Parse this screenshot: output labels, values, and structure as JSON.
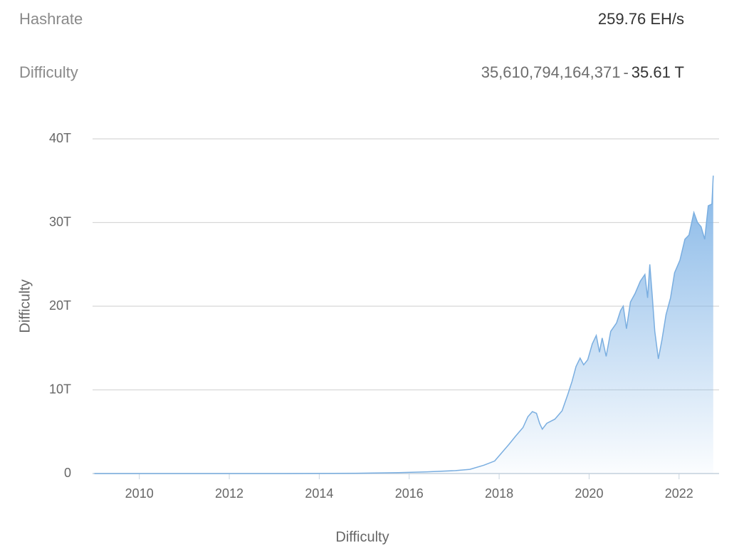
{
  "stats": [
    {
      "label": "Hashrate",
      "value": "259.76 EH/s"
    },
    {
      "label": "Difficulty",
      "value": "35,610,794,164,371",
      "separator": "-",
      "short": "35.61 T"
    }
  ],
  "chart_data": {
    "type": "area",
    "y_label": "Difficulty",
    "x_label": "Difficulty",
    "x": [
      2009.0,
      2010.85,
      2013.23,
      2014.81,
      2015.76,
      2016.4,
      2017.03,
      2017.35,
      2017.66,
      2017.9,
      2018.06,
      2018.22,
      2018.37,
      2018.53,
      2018.64,
      2018.74,
      2018.83,
      2018.9,
      2018.96,
      2019.06,
      2019.24,
      2019.4,
      2019.53,
      2019.62,
      2019.71,
      2019.8,
      2019.88,
      2019.97,
      2020.07,
      2020.16,
      2020.23,
      2020.29,
      2020.38,
      2020.48,
      2020.61,
      2020.7,
      2020.76,
      2020.83,
      2020.92,
      2021.02,
      2021.14,
      2021.24,
      2021.3,
      2021.35,
      2021.4,
      2021.46,
      2021.54,
      2021.62,
      2021.71,
      2021.81,
      2021.9,
      2022.02,
      2022.13,
      2022.22,
      2022.33,
      2022.41,
      2022.49,
      2022.57,
      2022.65,
      2022.73,
      2022.76
    ],
    "series": [
      {
        "name": "Difficulty",
        "color": "#7aaee0",
        "values": [
          0,
          0,
          0,
          0.03,
          0.1,
          0.2,
          0.35,
          0.5,
          1.0,
          1.5,
          2.5,
          3.5,
          4.5,
          5.5,
          6.8,
          7.4,
          7.2,
          6.0,
          5.3,
          6.0,
          6.5,
          7.5,
          9.5,
          11,
          12.8,
          13.8,
          13,
          13.6,
          15.5,
          16.5,
          14.5,
          16.2,
          14,
          17,
          18,
          19.5,
          20,
          17.3,
          20.5,
          21.5,
          23,
          23.8,
          21,
          25,
          21.5,
          17,
          13.7,
          16,
          19,
          21,
          24,
          25.5,
          28,
          28.5,
          31.2,
          30,
          29.5,
          28,
          32,
          32.2,
          35.61
        ]
      }
    ],
    "xlim": [
      2008.96,
      2022.89
    ],
    "xticks": [
      2010,
      2012,
      2014,
      2016,
      2018,
      2020,
      2022
    ],
    "ylim": [
      0,
      40
    ],
    "yticks": [
      {
        "value": 0,
        "label": "0"
      },
      {
        "value": 10,
        "label": "10T"
      },
      {
        "value": 20,
        "label": "20T"
      },
      {
        "value": 30,
        "label": "30T"
      },
      {
        "value": 40,
        "label": "40T"
      }
    ],
    "grid": true
  }
}
